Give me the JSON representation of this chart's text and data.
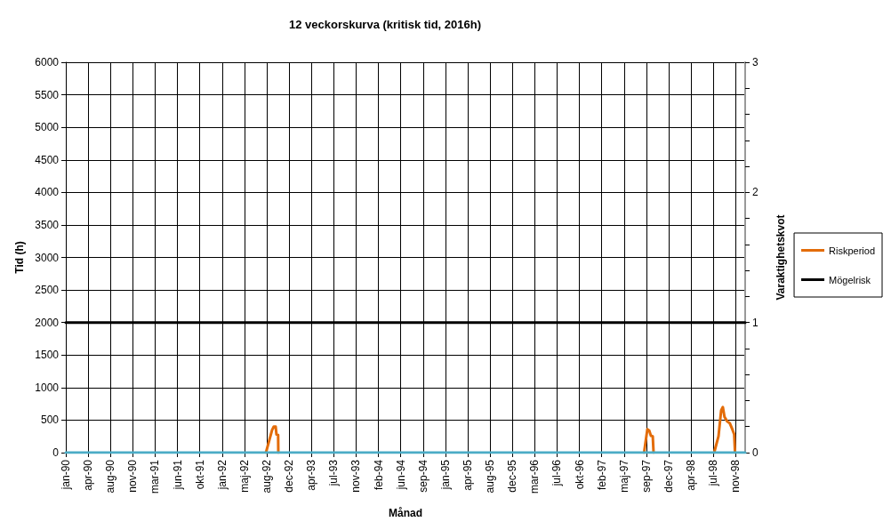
{
  "chart_data": {
    "type": "line",
    "title": "12 veckorskurva (kritisk tid, 2016h)",
    "xlabel": "Månad",
    "ylabel": "Tid (h)",
    "y2label": "Varaktighetskvot",
    "xlim": [
      "1990-01-01",
      "1998-12-31"
    ],
    "xticks": [
      {
        "value": "1990-01-01",
        "label": "jan-90"
      },
      {
        "value": "1990-04-19",
        "label": "apr-90"
      },
      {
        "value": "1990-08-05",
        "label": "aug-90"
      },
      {
        "value": "1990-11-21",
        "label": "nov-90"
      },
      {
        "value": "1991-03-09",
        "label": "mar-91"
      },
      {
        "value": "1991-06-25",
        "label": "jun-91"
      },
      {
        "value": "1991-10-11",
        "label": "okt-91"
      },
      {
        "value": "1992-01-27",
        "label": "jan-92"
      },
      {
        "value": "1992-05-14",
        "label": "maj-92"
      },
      {
        "value": "1992-08-30",
        "label": "aug-92"
      },
      {
        "value": "1992-12-16",
        "label": "dec-92"
      },
      {
        "value": "1993-04-03",
        "label": "apr-93"
      },
      {
        "value": "1993-07-20",
        "label": "jul-93"
      },
      {
        "value": "1993-11-05",
        "label": "nov-93"
      },
      {
        "value": "1994-02-21",
        "label": "feb-94"
      },
      {
        "value": "1994-06-09",
        "label": "jun-94"
      },
      {
        "value": "1994-09-25",
        "label": "sep-94"
      },
      {
        "value": "1995-01-11",
        "label": "jan-95"
      },
      {
        "value": "1995-04-29",
        "label": "apr-95"
      },
      {
        "value": "1995-08-15",
        "label": "aug-95"
      },
      {
        "value": "1995-12-01",
        "label": "dec-95"
      },
      {
        "value": "1996-03-18",
        "label": "mar-96"
      },
      {
        "value": "1996-07-04",
        "label": "jul-96"
      },
      {
        "value": "1996-10-20",
        "label": "okt-96"
      },
      {
        "value": "1997-02-05",
        "label": "feb-97"
      },
      {
        "value": "1997-05-24",
        "label": "maj-97"
      },
      {
        "value": "1997-09-09",
        "label": "sep-97"
      },
      {
        "value": "1997-12-26",
        "label": "dec-97"
      },
      {
        "value": "1998-04-13",
        "label": "apr-98"
      },
      {
        "value": "1998-07-30",
        "label": "jul-98"
      },
      {
        "value": "1998-11-15",
        "label": "nov-98"
      }
    ],
    "ylim": [
      0,
      6000
    ],
    "yticks": [
      0,
      500,
      1000,
      1500,
      2000,
      2500,
      3000,
      3500,
      4000,
      4500,
      5000,
      5500,
      6000
    ],
    "y2lim": [
      0,
      3
    ],
    "y2ticks": [
      0,
      {
        "value": 0.2,
        "label": null
      },
      {
        "value": 0.4,
        "label": null
      },
      {
        "value": 0.6,
        "label": null
      },
      {
        "value": 0.8,
        "label": null
      },
      1,
      {
        "value": 1.2,
        "label": null
      },
      {
        "value": 1.4,
        "label": null
      },
      {
        "value": 1.6,
        "label": null
      },
      {
        "value": 1.8,
        "label": null
      },
      2,
      {
        "value": 2.2,
        "label": null
      },
      {
        "value": 2.4,
        "label": null
      },
      {
        "value": 2.6,
        "label": null
      },
      {
        "value": 2.8,
        "label": null
      },
      3
    ],
    "grid": true,
    "legend": "right",
    "marker": "none",
    "line_style": "solid",
    "series": [
      {
        "name": "Riskperiod",
        "color": "#e36c09",
        "x": [
          "1992-08-26",
          "1992-09-25",
          "1992-10-03",
          "1992-10-12",
          "1992-10-16",
          "1992-10-24",
          "1992-10-25",
          "1994-01-01",
          "1997-08-29",
          "1997-09-14",
          "1997-09-23",
          "1997-10-01",
          "1997-10-10",
          "1997-10-14",
          "1998-01-01",
          "1998-08-03",
          "1998-08-24",
          "1998-09-06",
          "1998-09-14",
          "1998-09-22",
          "1998-10-05",
          "1998-10-18",
          "1998-10-31",
          "1998-11-08",
          "1998-11-12"
        ],
        "values": [
          0,
          350,
          400,
          400,
          280,
          270,
          0,
          null,
          0,
          360,
          340,
          260,
          250,
          0,
          null,
          0,
          250,
          650,
          700,
          550,
          480,
          450,
          350,
          280,
          0
        ]
      },
      {
        "name": "Mögelrisk",
        "color": "#000000",
        "axis": "y2",
        "x": [
          "1990-01-01",
          "1998-12-31"
        ],
        "values": [
          1,
          1
        ]
      },
      {
        "color": "#4bacc6",
        "axis": "y2",
        "x": [
          "1990-01-01",
          "1998-12-31"
        ],
        "values": [
          0,
          0
        ]
      }
    ]
  }
}
